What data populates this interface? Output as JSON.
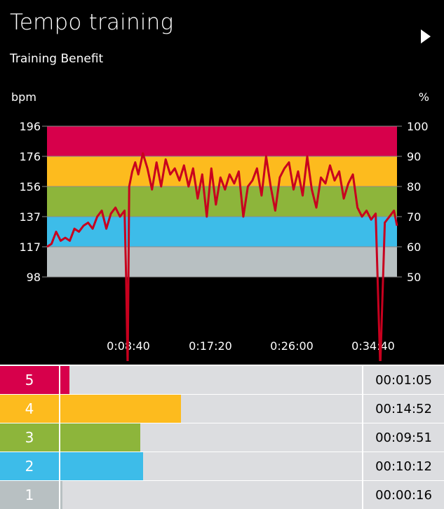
{
  "header": {
    "title": "Tempo training",
    "subtitle": "Training Benefit",
    "play_icon": "play-icon"
  },
  "colors": {
    "zone5": "#d7004b",
    "zone4": "#fdbb1e",
    "zone3": "#8db53b",
    "zone2": "#3dbce9",
    "zone1": "#b8c0c2",
    "hr_line": "#c8001e"
  },
  "chart_data": {
    "type": "line",
    "left_axis_label": "bpm",
    "right_axis_label": "%",
    "left_ticks": [
      "196",
      "176",
      "156",
      "137",
      "117",
      "98"
    ],
    "right_ticks": [
      "100",
      "90",
      "80",
      "70",
      "60",
      "50"
    ],
    "x_ticks": [
      "0:08:40",
      "0:17:20",
      "0:26:00",
      "0:34:40"
    ],
    "y_range_percent": [
      50,
      100
    ],
    "x_range_seconds": [
      0,
      2300
    ],
    "series": [
      {
        "x": [
          0,
          30,
          60,
          90,
          120,
          150,
          180,
          210,
          240,
          270,
          300,
          330,
          360,
          390,
          420,
          450,
          480,
          510,
          520,
          530,
          540,
          560,
          580,
          600,
          630,
          660,
          690,
          720,
          750,
          780,
          810,
          840,
          870,
          900,
          930,
          960,
          990,
          1020,
          1050,
          1080,
          1110,
          1140,
          1170,
          1200,
          1230,
          1260,
          1290,
          1320,
          1350,
          1380,
          1410,
          1440,
          1470,
          1500,
          1530,
          1560,
          1590,
          1620,
          1650,
          1680,
          1710,
          1740,
          1770,
          1800,
          1830,
          1860,
          1890,
          1920,
          1950,
          1980,
          2010,
          2040,
          2070,
          2100,
          2130,
          2160,
          2190,
          2220,
          2250,
          2280,
          2300
        ],
        "values": [
          60,
          61,
          65,
          62,
          63,
          62,
          66,
          65,
          67,
          68,
          66,
          70,
          72,
          66,
          71,
          73,
          70,
          72,
          50,
          20,
          80,
          85,
          88,
          84,
          91,
          86,
          79,
          88,
          80,
          89,
          84,
          86,
          82,
          87,
          80,
          86,
          76,
          84,
          70,
          86,
          74,
          83,
          79,
          84,
          81,
          85,
          70,
          80,
          82,
          86,
          77,
          90,
          80,
          72,
          83,
          86,
          88,
          79,
          85,
          77,
          90,
          79,
          73,
          83,
          81,
          87,
          82,
          85,
          76,
          81,
          84,
          73,
          70,
          72,
          69,
          71,
          20,
          68,
          70,
          72,
          67
        ]
      }
    ]
  },
  "zones": [
    {
      "number": "5",
      "time": "00:01:05",
      "fraction": 0.03,
      "color_key": "zone5"
    },
    {
      "number": "4",
      "time": "00:14:52",
      "fraction": 0.4,
      "color_key": "zone4"
    },
    {
      "number": "3",
      "time": "00:09:51",
      "fraction": 0.265,
      "color_key": "zone3"
    },
    {
      "number": "2",
      "time": "00:10:12",
      "fraction": 0.275,
      "color_key": "zone2"
    },
    {
      "number": "1",
      "time": "00:00:16",
      "fraction": 0.007,
      "color_key": "zone1"
    }
  ]
}
